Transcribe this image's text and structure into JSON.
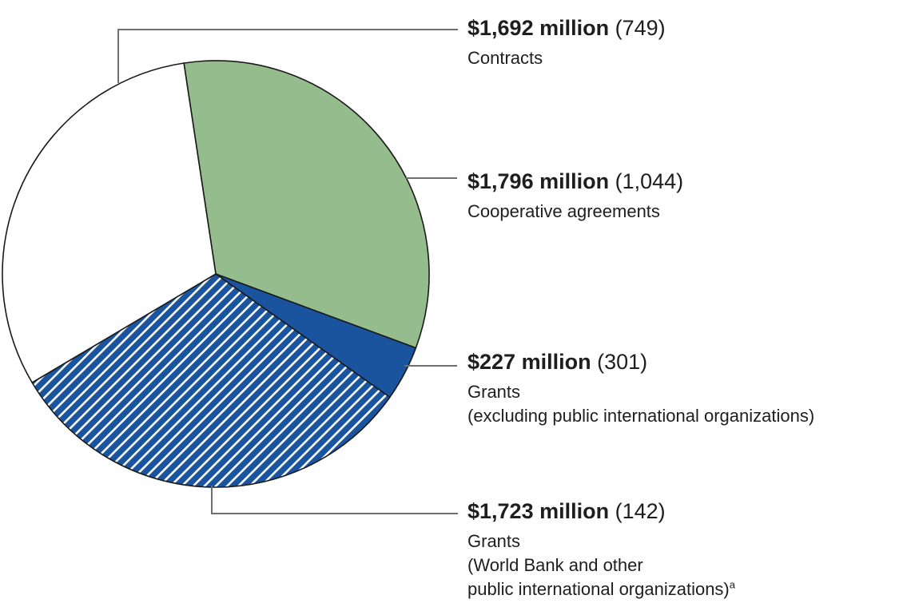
{
  "chart_data": {
    "type": "pie",
    "title": "",
    "start_angle_deg": -8.6,
    "slices": [
      {
        "label": "Cooperative agreements",
        "value_million": 1796,
        "award_count": 1044,
        "display_value": "$1,796 million",
        "display_count": "(1,044)",
        "fill": "green",
        "pattern": "solid"
      },
      {
        "label": "Grants (excluding public international organizations)",
        "value_million": 227,
        "award_count": 301,
        "display_value": "$227 million",
        "display_count": "(301)",
        "fill": "blue",
        "pattern": "solid"
      },
      {
        "label": "Grants (World Bank and other public international organizations)",
        "value_million": 1723,
        "award_count": 142,
        "display_value": "$1,723 million",
        "display_count": "(142)",
        "fill": "blue",
        "pattern": "diagonal-stripes"
      },
      {
        "label": "Contracts",
        "value_million": 1692,
        "award_count": 749,
        "display_value": "$1,692 million",
        "display_count": "(749)",
        "fill": "white",
        "pattern": "solid"
      }
    ]
  },
  "colors": {
    "green": "#95BC8D",
    "blue": "#1A549E",
    "white": "#FFFFFF",
    "outline": "#1A1A1A",
    "leader_line": "#6F6F6F",
    "hatch_stripe": "#FFFFFF",
    "text": "#1e1e1e"
  },
  "labels": [
    {
      "value": "$1,692 million",
      "count": "(749)",
      "lines": [
        "Contracts"
      ]
    },
    {
      "value": "$1,796 million",
      "count": "(1,044)",
      "lines": [
        "Cooperative agreements"
      ]
    },
    {
      "value": "$227 million",
      "count": "(301)",
      "lines": [
        "Grants",
        "(excluding public international organizations)"
      ]
    },
    {
      "value": "$1,723 million",
      "count": "(142)",
      "lines": [
        "Grants",
        "(World Bank and other",
        "public international organizations)"
      ],
      "footnote": "a"
    }
  ]
}
